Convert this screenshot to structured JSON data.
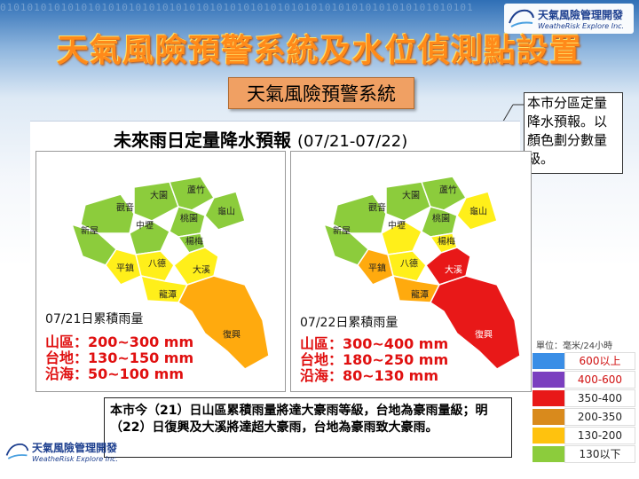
{
  "header": {
    "binary_text": "0101010101010101010101010101010101010101010101010101010101010101010101",
    "logo_cn": "天氣風險管理開發",
    "logo_en": "WeatheRisk Explore Inc.",
    "logo_mark_text": "Weather Risk",
    "main_title": "天氣風險預警系統及水位偵測點設置",
    "sub_title": "天氣風險預警系統"
  },
  "callout": {
    "text": "本市分區定量降水預報。以顏色劃分數量級。"
  },
  "panel": {
    "title": "未來雨日定量降水預報",
    "dates": "(07/21-07/22)"
  },
  "map_day1": {
    "districts": [
      "觀音",
      "大園",
      "蘆竹",
      "龜山",
      "新屋",
      "中壢",
      "桃園",
      "楊梅",
      "平鎮",
      "八德",
      "大溪",
      "龍潭",
      "復興"
    ],
    "acc_title": "07/21日累積雨量",
    "lines": [
      "山區：200~300 mm",
      "台地：130~150 mm",
      "沿海：50~100 mm"
    ]
  },
  "map_day2": {
    "districts": [
      "觀音",
      "大園",
      "蘆竹",
      "龜山",
      "新屋",
      "中壢",
      "桃園",
      "楊梅",
      "平鎮",
      "八德",
      "大溪",
      "龍潭",
      "復興"
    ],
    "acc_title": "07/22日累積雨量",
    "lines": [
      "山區：300~400 mm",
      "台地：180~250 mm",
      "沿海：80~130 mm"
    ]
  },
  "legend": {
    "unit": "單位：毫米/24小時",
    "items": [
      {
        "label": "600以上",
        "color": "#3a8ee6"
      },
      {
        "label": "400-600",
        "color": "#7b3fbf"
      },
      {
        "label": "350-400",
        "color": "#e81818"
      },
      {
        "label": "200-350",
        "color": "#d98a1c"
      },
      {
        "label": "130-200",
        "color": "#ffc20e"
      },
      {
        "label": "130以下",
        "color": "#8ccc3c"
      }
    ]
  },
  "summary": {
    "text": "本市今（21）日山區累積雨量將達大豪雨等級，台地為豪雨量級；明（22）日復興及大溪將達超大豪雨，台地為豪雨致大豪雨。"
  },
  "colors": {
    "title_orange": "#ff8a1a",
    "header_blue": "#2f6fb6",
    "accum_red": "#e01010"
  }
}
